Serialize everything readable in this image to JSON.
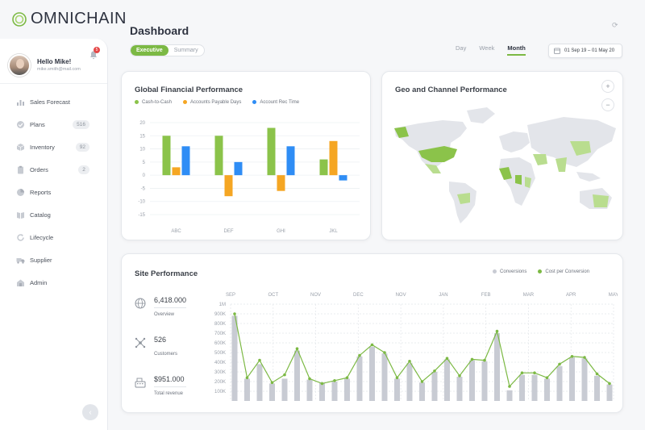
{
  "brand": {
    "name": "OMNICHAIN"
  },
  "user": {
    "greeting": "Hello Mike!",
    "email": "mike.smith@mail.com",
    "notifications": "5"
  },
  "nav": [
    {
      "label": "Sales Forecast",
      "icon": "chart-icon",
      "count": ""
    },
    {
      "label": "Plans",
      "icon": "check-icon",
      "count": "516"
    },
    {
      "label": "Inventory",
      "icon": "box-icon",
      "count": "92"
    },
    {
      "label": "Orders",
      "icon": "clipboard-icon",
      "count": "2"
    },
    {
      "label": "Reports",
      "icon": "pie-icon",
      "count": ""
    },
    {
      "label": "Catalog",
      "icon": "book-icon",
      "count": ""
    },
    {
      "label": "Lifecycle",
      "icon": "cycle-icon",
      "count": ""
    },
    {
      "label": "Supplier",
      "icon": "truck-icon",
      "count": ""
    },
    {
      "label": "Admin",
      "icon": "admin-icon",
      "count": ""
    }
  ],
  "header": {
    "title": "Dashboard",
    "tabs": [
      "Executive",
      "Summary"
    ],
    "active_tab": "Executive",
    "ranges": [
      "Day",
      "Week",
      "Month"
    ],
    "active_range": "Month",
    "date_range": "01 Sep 19 – 01 May 20"
  },
  "colors": {
    "accent": "#7cb944",
    "green": "#8bc34a",
    "orange": "#f5a623",
    "blue": "#2f8df5",
    "grey_bar": "#c8cbd3"
  },
  "financial": {
    "title": "Global Financial Performance",
    "chart_data": {
      "type": "bar",
      "categories": [
        "ABC",
        "DEF",
        "GHI",
        "JKL"
      ],
      "series": [
        {
          "name": "Cash-to-Cash",
          "values": [
            15,
            15,
            18,
            6
          ]
        },
        {
          "name": "Accounts Payable Days",
          "values": [
            3,
            -8,
            -6,
            13
          ]
        },
        {
          "name": "Account Rec Time",
          "values": [
            11,
            5,
            11,
            -2
          ]
        }
      ],
      "yticks": [
        "20",
        "15",
        "10",
        "5",
        "0",
        "-5",
        "-10",
        "-15"
      ],
      "ylim": [
        -15,
        20
      ],
      "grid": true,
      "legend": "top-left"
    }
  },
  "geo": {
    "title": "Geo and Channel Performance",
    "zoom_in": "+",
    "zoom_out": "−"
  },
  "site": {
    "title": "Site Performance",
    "legend": [
      "Conversions",
      "Cost per Conversion"
    ],
    "stats": [
      {
        "value": "6,418.000",
        "label": "Overview",
        "icon": "globe-icon"
      },
      {
        "value": "526",
        "label": "Customers",
        "icon": "network-icon"
      },
      {
        "value": "$951.000",
        "label": "Total revenue",
        "icon": "cash-register-icon"
      }
    ],
    "chart_data": {
      "type": "bar",
      "months": [
        "SEP",
        "OCT",
        "NOV",
        "DEC",
        "NOV",
        "JAN",
        "FEB",
        "MAR",
        "APR",
        "MAY"
      ],
      "yticks": [
        "1M",
        "900K",
        "800K",
        "700K",
        "600K",
        "500K",
        "400K",
        "300K",
        "200K",
        "100K"
      ],
      "ylim": [
        0,
        1000000
      ],
      "series": [
        {
          "name": "Conversions",
          "values": [
            880000,
            230000,
            380000,
            180000,
            230000,
            520000,
            220000,
            190000,
            200000,
            230000,
            460000,
            560000,
            490000,
            230000,
            390000,
            190000,
            300000,
            430000,
            250000,
            420000,
            410000,
            700000,
            110000,
            270000,
            270000,
            230000,
            360000,
            450000,
            440000,
            260000,
            170000
          ]
        },
        {
          "name": "Cost per Conversion",
          "values": [
            900000,
            240000,
            420000,
            190000,
            270000,
            540000,
            230000,
            180000,
            210000,
            240000,
            470000,
            580000,
            500000,
            240000,
            410000,
            200000,
            310000,
            440000,
            260000,
            430000,
            420000,
            720000,
            150000,
            290000,
            290000,
            240000,
            380000,
            460000,
            450000,
            280000,
            180000
          ]
        }
      ],
      "grid": true,
      "legend": "top-right"
    }
  }
}
